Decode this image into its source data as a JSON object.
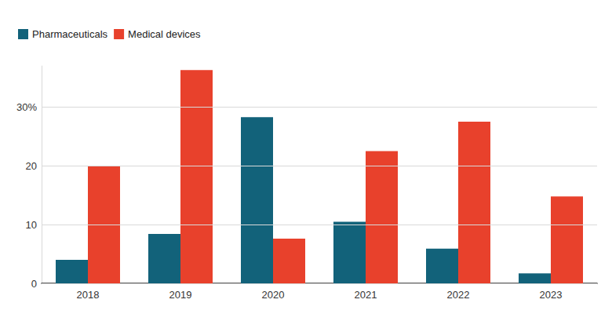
{
  "chart_data": {
    "type": "bar",
    "categories": [
      "2018",
      "2019",
      "2020",
      "2021",
      "2022",
      "2023"
    ],
    "series": [
      {
        "name": "Pharmaceuticals",
        "color": "#12627a",
        "values": [
          4.0,
          8.4,
          28.3,
          10.5,
          5.9,
          1.7
        ]
      },
      {
        "name": "Medical devices",
        "color": "#e8412c",
        "values": [
          20.0,
          36.3,
          7.6,
          22.5,
          27.5,
          14.8
        ]
      }
    ],
    "ylim": [
      0,
      37
    ],
    "yticks": [
      0,
      10,
      20,
      {
        "value": 30,
        "label": "30%"
      }
    ],
    "grid": true,
    "legend": "top-left"
  }
}
